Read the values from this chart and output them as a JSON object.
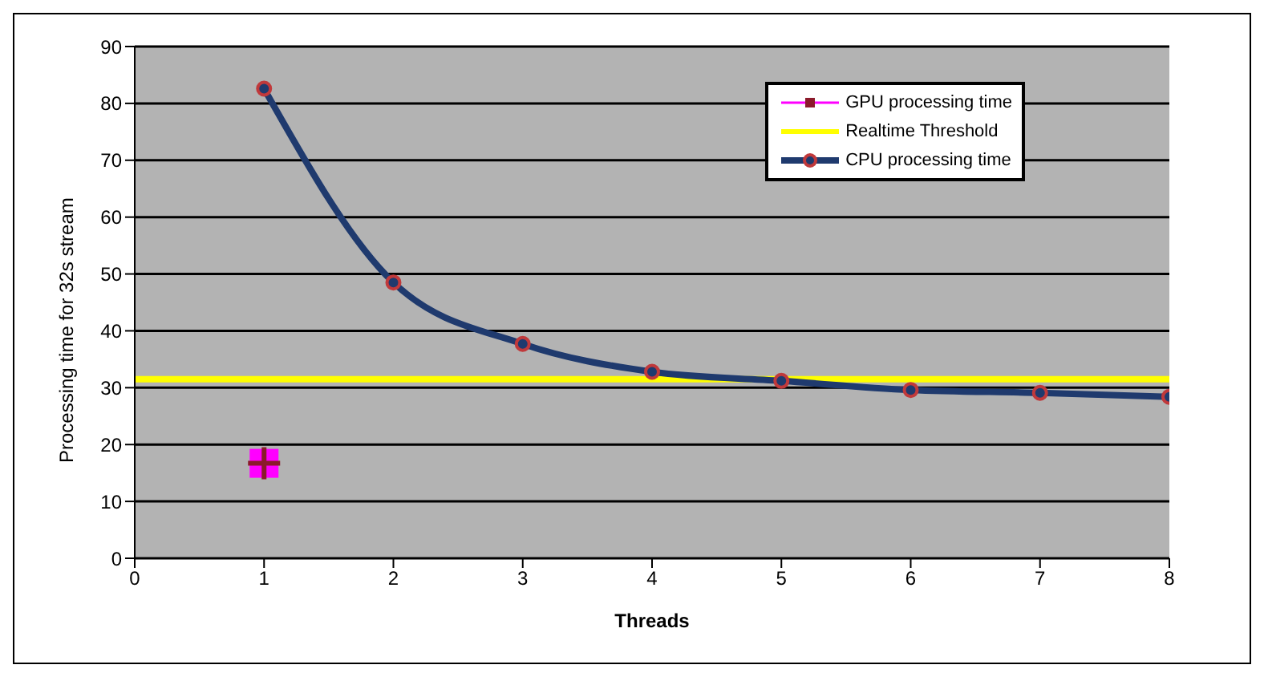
{
  "chart_data": {
    "type": "line",
    "xlabel": "Threads",
    "ylabel": "Processing time for 32s stream",
    "xlim": [
      0,
      8
    ],
    "xticks": [
      0,
      1,
      2,
      3,
      4,
      5,
      6,
      7,
      8
    ],
    "ylim": [
      0,
      90
    ],
    "yticks": [
      0,
      10,
      20,
      30,
      40,
      50,
      60,
      70,
      80,
      90
    ],
    "grid": "y",
    "legend": "top right",
    "marker": "circle",
    "series": [
      {
        "name": "GPU processing time",
        "color": "#ff00ff",
        "marker": "square",
        "x": [
          1
        ],
        "values": [
          16.7
        ]
      },
      {
        "name": "Realtime Threshold",
        "color": "#ffff00",
        "marker": "none",
        "x": [
          0,
          8
        ],
        "values": [
          31.5,
          31.5
        ]
      },
      {
        "name": "CPU processing time",
        "color": "#1f3a6e",
        "x": [
          1,
          2,
          3,
          4,
          5,
          6,
          7,
          8
        ],
        "values": [
          82.6,
          48.5,
          37.7,
          32.8,
          31.2,
          29.6,
          29.1,
          28.4
        ]
      }
    ]
  }
}
